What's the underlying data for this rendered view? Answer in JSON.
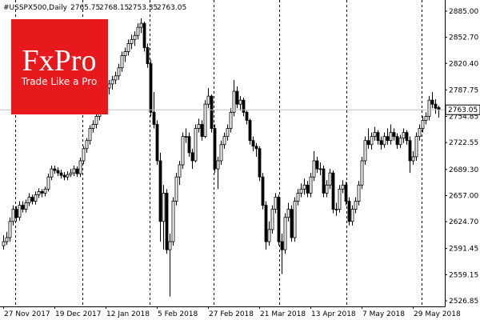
{
  "chart_data": {
    "type": "candlestick",
    "symbol": "#USSPX500,Daily",
    "logo": {
      "brand": "FxPro",
      "tagline": "Trade Like a Pro"
    },
    "categories": [
      "27 Nov 2017",
      null,
      null,
      null,
      null,
      null,
      null,
      null,
      null,
      null,
      null,
      null,
      null,
      null,
      null,
      null,
      "19 Dec 2017",
      null,
      null,
      null,
      null,
      null,
      null,
      null,
      null,
      null,
      null,
      null,
      null,
      null,
      null,
      null,
      "12 Jan 2018",
      null,
      null,
      null,
      null,
      null,
      null,
      null,
      null,
      null,
      null,
      null,
      null,
      null,
      null,
      null,
      "5 Feb 2018",
      null,
      null,
      null,
      null,
      null,
      null,
      null,
      null,
      null,
      null,
      null,
      null,
      null,
      null,
      null,
      "27 Feb 2018",
      null,
      null,
      null,
      null,
      null,
      null,
      null,
      null,
      null,
      null,
      null,
      null,
      null,
      null,
      null,
      "21 Mar 2018",
      null,
      null,
      null,
      null,
      null,
      null,
      null,
      null,
      null,
      null,
      null,
      null,
      null,
      null,
      null,
      "13 Apr 2018",
      null,
      null,
      null,
      null,
      null,
      null,
      null,
      null,
      null,
      null,
      null,
      null,
      null,
      null,
      null,
      "7 May 2018",
      null,
      null,
      null,
      null,
      null,
      null,
      null,
      null,
      null,
      null,
      null,
      null,
      null,
      null,
      null,
      "29 May 2018",
      null,
      null,
      null,
      null,
      null,
      null,
      null,
      null
    ],
    "open": [
      2595,
      2600,
      2605,
      2625,
      2640,
      2630,
      2645,
      2640,
      2648,
      2655,
      2650,
      2658,
      2662,
      2660,
      2665,
      2680,
      2690,
      2688,
      2685,
      2682,
      2680,
      2683,
      2685,
      2690,
      2684,
      2700,
      2715,
      2725,
      2740,
      2745,
      2755,
      2765,
      2775,
      2790,
      2795,
      2800,
      2805,
      2815,
      2830,
      2835,
      2845,
      2850,
      2855,
      2865,
      2870,
      2840,
      2820,
      2760,
      2745,
      2700,
      2625,
      2660,
      2590,
      2600,
      2650,
      2680,
      2695,
      2730,
      2730,
      2710,
      2700,
      2740,
      2745,
      2730,
      2770,
      2780,
      2740,
      2690,
      2700,
      2720,
      2730,
      2740,
      2760,
      2786,
      2770,
      2775,
      2760,
      2750,
      2725,
      2718,
      2715,
      2680,
      2645,
      2600,
      2615,
      2640,
      2655,
      2600,
      2590,
      2630,
      2640,
      2605,
      2650,
      2660,
      2665,
      2670,
      2660,
      2680,
      2700,
      2690,
      2690,
      2660,
      2670,
      2685,
      2640,
      2640,
      2665,
      2670,
      2650,
      2625,
      2640,
      2650,
      2670,
      2700,
      2725,
      2720,
      2730,
      2735,
      2725,
      2720,
      2730,
      2725,
      2735,
      2730,
      2720,
      2728,
      2735,
      2725,
      2700,
      2705,
      2730,
      2740,
      2750,
      2755,
      2775,
      2770,
      2765.75
    ],
    "high": [
      2608,
      2612,
      2630,
      2645,
      2644,
      2650,
      2650,
      2652,
      2660,
      2658,
      2662,
      2666,
      2665,
      2668,
      2684,
      2694,
      2694,
      2692,
      2689,
      2686,
      2687,
      2690,
      2694,
      2693,
      2704,
      2718,
      2728,
      2744,
      2750,
      2760,
      2770,
      2778,
      2794,
      2800,
      2805,
      2810,
      2820,
      2835,
      2840,
      2850,
      2856,
      2860,
      2870,
      2876,
      2872,
      2845,
      2825,
      2785,
      2750,
      2710,
      2670,
      2665,
      2610,
      2655,
      2685,
      2700,
      2735,
      2740,
      2735,
      2715,
      2745,
      2752,
      2750,
      2775,
      2790,
      2782,
      2745,
      2705,
      2725,
      2735,
      2745,
      2765,
      2800,
      2792,
      2780,
      2778,
      2762,
      2752,
      2730,
      2722,
      2718,
      2685,
      2650,
      2625,
      2645,
      2660,
      2658,
      2610,
      2635,
      2648,
      2645,
      2655,
      2665,
      2672,
      2678,
      2675,
      2685,
      2712,
      2705,
      2698,
      2694,
      2676,
      2690,
      2688,
      2648,
      2670,
      2676,
      2674,
      2655,
      2645,
      2655,
      2675,
      2705,
      2730,
      2740,
      2735,
      2742,
      2738,
      2730,
      2735,
      2740,
      2745,
      2740,
      2734,
      2732,
      2740,
      2738,
      2730,
      2712,
      2735,
      2745,
      2755,
      2760,
      2780,
      2785,
      2776,
      2768.15
    ],
    "low": [
      2590,
      2596,
      2600,
      2620,
      2625,
      2626,
      2636,
      2636,
      2644,
      2646,
      2646,
      2654,
      2655,
      2656,
      2662,
      2676,
      2684,
      2681,
      2678,
      2676,
      2676,
      2680,
      2681,
      2680,
      2680,
      2696,
      2710,
      2720,
      2735,
      2740,
      2750,
      2760,
      2770,
      2782,
      2788,
      2795,
      2800,
      2810,
      2822,
      2830,
      2838,
      2842,
      2850,
      2858,
      2835,
      2815,
      2755,
      2740,
      2695,
      2600,
      2590,
      2585,
      2532,
      2595,
      2645,
      2670,
      2690,
      2722,
      2705,
      2690,
      2698,
      2735,
      2725,
      2728,
      2765,
      2735,
      2685,
      2665,
      2695,
      2715,
      2725,
      2735,
      2755,
      2765,
      2762,
      2755,
      2745,
      2720,
      2712,
      2705,
      2675,
      2640,
      2590,
      2595,
      2610,
      2635,
      2595,
      2560,
      2585,
      2625,
      2600,
      2600,
      2645,
      2655,
      2658,
      2655,
      2655,
      2675,
      2685,
      2682,
      2655,
      2655,
      2665,
      2635,
      2632,
      2636,
      2660,
      2645,
      2620,
      2620,
      2635,
      2645,
      2665,
      2695,
      2715,
      2714,
      2725,
      2720,
      2714,
      2716,
      2720,
      2720,
      2725,
      2715,
      2716,
      2722,
      2720,
      2685,
      2695,
      2700,
      2725,
      2735,
      2745,
      2750,
      2765,
      2758,
      2753.35
    ],
    "close": [
      2600,
      2605,
      2625,
      2640,
      2630,
      2645,
      2640,
      2648,
      2655,
      2650,
      2658,
      2662,
      2660,
      2665,
      2680,
      2690,
      2688,
      2685,
      2682,
      2680,
      2683,
      2685,
      2690,
      2684,
      2700,
      2715,
      2725,
      2740,
      2745,
      2755,
      2765,
      2775,
      2790,
      2795,
      2800,
      2805,
      2815,
      2830,
      2835,
      2845,
      2850,
      2855,
      2865,
      2870,
      2840,
      2820,
      2760,
      2745,
      2700,
      2625,
      2660,
      2590,
      2600,
      2650,
      2680,
      2695,
      2730,
      2730,
      2710,
      2700,
      2740,
      2745,
      2730,
      2770,
      2780,
      2740,
      2690,
      2700,
      2720,
      2730,
      2740,
      2760,
      2786,
      2770,
      2775,
      2760,
      2750,
      2725,
      2718,
      2715,
      2680,
      2645,
      2600,
      2615,
      2640,
      2655,
      2600,
      2590,
      2630,
      2640,
      2605,
      2650,
      2660,
      2665,
      2670,
      2660,
      2680,
      2700,
      2690,
      2690,
      2660,
      2670,
      2685,
      2640,
      2640,
      2665,
      2670,
      2650,
      2625,
      2640,
      2650,
      2670,
      2700,
      2725,
      2720,
      2730,
      2735,
      2725,
      2720,
      2730,
      2725,
      2735,
      2730,
      2720,
      2728,
      2735,
      2725,
      2700,
      2705,
      2730,
      2740,
      2750,
      2755,
      2775,
      2770,
      2765,
      2763.05
    ],
    "ylim": [
      2519.94,
      2898.81
    ],
    "yticks": [
      {
        "value": 2885,
        "label": "2885.00"
      },
      {
        "value": 2852.7,
        "label": "2852.70"
      },
      {
        "value": 2820.4,
        "label": "2820.40"
      },
      2787.75,
      2754.85,
      2722.55,
      {
        "value": 2689.3,
        "label": "2689.30"
      },
      {
        "value": 2657,
        "label": "2657.00"
      },
      {
        "value": 2624.7,
        "label": "2624.70"
      },
      2591.45,
      2559.15,
      2526.85
    ],
    "up_color": "#ffffff",
    "down_color": "#000000",
    "logo_color": "#e8191c"
  }
}
